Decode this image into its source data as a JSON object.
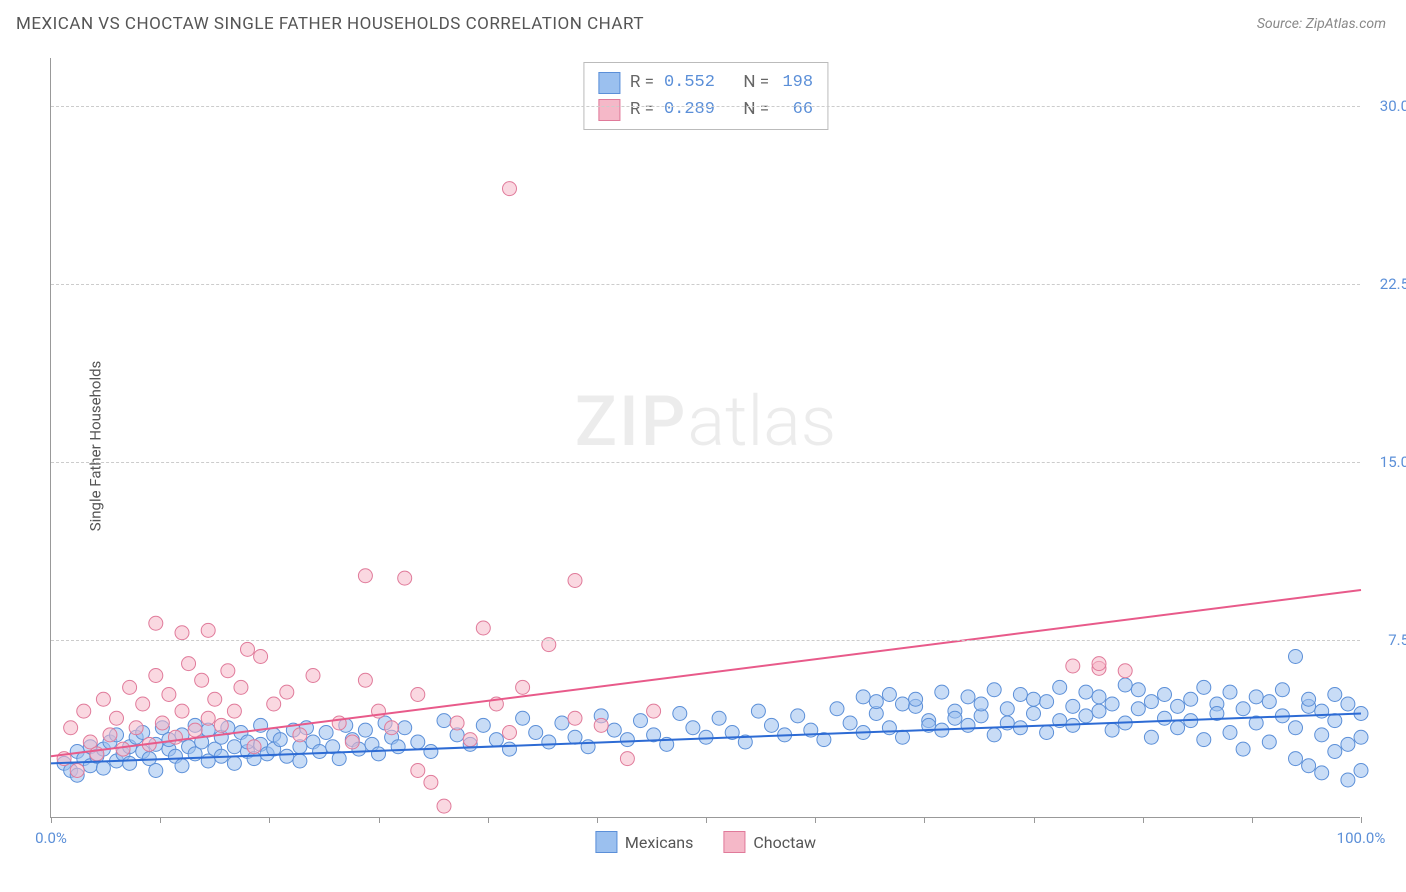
{
  "title": "MEXICAN VS CHOCTAW SINGLE FATHER HOUSEHOLDS CORRELATION CHART",
  "source": "Source: ZipAtlas.com",
  "ylabel": "Single Father Households",
  "watermark_zip": "ZIP",
  "watermark_atlas": "atlas",
  "chart": {
    "type": "scatter",
    "background_color": "#ffffff",
    "grid_color": "#cccccc",
    "axis_color": "#999999",
    "xlim": [
      0,
      100
    ],
    "ylim": [
      0,
      32
    ],
    "xtick_label_left": "0.0%",
    "xtick_label_right": "100.0%",
    "xtick_positions": [
      0,
      8.33,
      16.67,
      25,
      33.33,
      41.67,
      50,
      58.33,
      66.67,
      75,
      83.33,
      91.67,
      100
    ],
    "ytick_labels": [
      {
        "v": 7.5,
        "label": "7.5%"
      },
      {
        "v": 15.0,
        "label": "15.0%"
      },
      {
        "v": 22.5,
        "label": "22.5%"
      },
      {
        "v": 30.0,
        "label": "30.0%"
      }
    ],
    "marker_radius": 7,
    "marker_opacity": 0.55,
    "line_width": 2,
    "series": [
      {
        "name": "Mexicans",
        "fill_color": "#9bc0ef",
        "stroke_color": "#5b8fd8",
        "line_color": "#2d6bd4",
        "R": "0.552",
        "N": "198",
        "trend": {
          "x1": 0,
          "y1": 2.3,
          "x2": 100,
          "y2": 4.4
        },
        "points": [
          [
            1,
            2.3
          ],
          [
            1.5,
            2.0
          ],
          [
            2,
            2.8
          ],
          [
            2,
            1.8
          ],
          [
            2.5,
            2.5
          ],
          [
            3,
            2.2
          ],
          [
            3,
            3.0
          ],
          [
            3.5,
            2.6
          ],
          [
            4,
            2.9
          ],
          [
            4,
            2.1
          ],
          [
            4.5,
            3.2
          ],
          [
            5,
            2.4
          ],
          [
            5,
            3.5
          ],
          [
            5.5,
            2.7
          ],
          [
            6,
            3.0
          ],
          [
            6,
            2.3
          ],
          [
            6.5,
            3.4
          ],
          [
            7,
            2.8
          ],
          [
            7,
            3.6
          ],
          [
            7.5,
            2.5
          ],
          [
            8,
            3.1
          ],
          [
            8,
            2.0
          ],
          [
            8.5,
            3.8
          ],
          [
            9,
            2.9
          ],
          [
            9,
            3.3
          ],
          [
            9.5,
            2.6
          ],
          [
            10,
            3.5
          ],
          [
            10,
            2.2
          ],
          [
            10.5,
            3.0
          ],
          [
            11,
            2.7
          ],
          [
            11,
            3.9
          ],
          [
            11.5,
            3.2
          ],
          [
            12,
            2.4
          ],
          [
            12,
            3.7
          ],
          [
            12.5,
            2.9
          ],
          [
            13,
            3.4
          ],
          [
            13,
            2.6
          ],
          [
            13.5,
            3.8
          ],
          [
            14,
            3.0
          ],
          [
            14,
            2.3
          ],
          [
            14.5,
            3.6
          ],
          [
            15,
            2.8
          ],
          [
            15,
            3.2
          ],
          [
            15.5,
            2.5
          ],
          [
            16,
            3.9
          ],
          [
            16,
            3.1
          ],
          [
            16.5,
            2.7
          ],
          [
            17,
            3.5
          ],
          [
            17,
            2.9
          ],
          [
            17.5,
            3.3
          ],
          [
            18,
            2.6
          ],
          [
            18.5,
            3.7
          ],
          [
            19,
            3.0
          ],
          [
            19,
            2.4
          ],
          [
            19.5,
            3.8
          ],
          [
            20,
            3.2
          ],
          [
            20.5,
            2.8
          ],
          [
            21,
            3.6
          ],
          [
            21.5,
            3.0
          ],
          [
            22,
            2.5
          ],
          [
            22.5,
            3.9
          ],
          [
            23,
            3.3
          ],
          [
            23.5,
            2.9
          ],
          [
            24,
            3.7
          ],
          [
            24.5,
            3.1
          ],
          [
            25,
            2.7
          ],
          [
            25.5,
            4.0
          ],
          [
            26,
            3.4
          ],
          [
            26.5,
            3.0
          ],
          [
            27,
            3.8
          ],
          [
            28,
            3.2
          ],
          [
            29,
            2.8
          ],
          [
            30,
            4.1
          ],
          [
            31,
            3.5
          ],
          [
            32,
            3.1
          ],
          [
            33,
            3.9
          ],
          [
            34,
            3.3
          ],
          [
            35,
            2.9
          ],
          [
            36,
            4.2
          ],
          [
            37,
            3.6
          ],
          [
            38,
            3.2
          ],
          [
            39,
            4.0
          ],
          [
            40,
            3.4
          ],
          [
            41,
            3.0
          ],
          [
            42,
            4.3
          ],
          [
            43,
            3.7
          ],
          [
            44,
            3.3
          ],
          [
            45,
            4.1
          ],
          [
            46,
            3.5
          ],
          [
            47,
            3.1
          ],
          [
            48,
            4.4
          ],
          [
            49,
            3.8
          ],
          [
            50,
            3.4
          ],
          [
            51,
            4.2
          ],
          [
            52,
            3.6
          ],
          [
            53,
            3.2
          ],
          [
            54,
            4.5
          ],
          [
            55,
            3.9
          ],
          [
            56,
            3.5
          ],
          [
            57,
            4.3
          ],
          [
            58,
            3.7
          ],
          [
            59,
            3.3
          ],
          [
            60,
            4.6
          ],
          [
            61,
            4.0
          ],
          [
            62,
            3.6
          ],
          [
            62,
            5.1
          ],
          [
            63,
            4.4
          ],
          [
            63,
            4.9
          ],
          [
            64,
            3.8
          ],
          [
            64,
            5.2
          ],
          [
            65,
            4.8
          ],
          [
            65,
            3.4
          ],
          [
            66,
            4.7
          ],
          [
            66,
            5.0
          ],
          [
            67,
            4.1
          ],
          [
            67,
            3.9
          ],
          [
            68,
            5.3
          ],
          [
            68,
            3.7
          ],
          [
            69,
            4.5
          ],
          [
            69,
            4.2
          ],
          [
            70,
            5.1
          ],
          [
            70,
            3.9
          ],
          [
            71,
            4.3
          ],
          [
            71,
            4.8
          ],
          [
            72,
            5.4
          ],
          [
            72,
            3.5
          ],
          [
            73,
            4.6
          ],
          [
            73,
            4.0
          ],
          [
            74,
            5.2
          ],
          [
            74,
            3.8
          ],
          [
            75,
            4.4
          ],
          [
            75,
            5.0
          ],
          [
            76,
            3.6
          ],
          [
            76,
            4.9
          ],
          [
            77,
            5.5
          ],
          [
            77,
            4.1
          ],
          [
            78,
            4.7
          ],
          [
            78,
            3.9
          ],
          [
            79,
            5.3
          ],
          [
            79,
            4.3
          ],
          [
            80,
            4.5
          ],
          [
            80,
            5.1
          ],
          [
            81,
            3.7
          ],
          [
            81,
            4.8
          ],
          [
            82,
            5.6
          ],
          [
            82,
            4.0
          ],
          [
            83,
            4.6
          ],
          [
            83,
            5.4
          ],
          [
            84,
            3.4
          ],
          [
            84,
            4.9
          ],
          [
            85,
            4.2
          ],
          [
            85,
            5.2
          ],
          [
            86,
            3.8
          ],
          [
            86,
            4.7
          ],
          [
            87,
            5.0
          ],
          [
            87,
            4.1
          ],
          [
            88,
            5.5
          ],
          [
            88,
            3.3
          ],
          [
            89,
            4.8
          ],
          [
            89,
            4.4
          ],
          [
            90,
            5.3
          ],
          [
            90,
            3.6
          ],
          [
            91,
            4.6
          ],
          [
            91,
            2.9
          ],
          [
            92,
            5.1
          ],
          [
            92,
            4.0
          ],
          [
            93,
            4.9
          ],
          [
            93,
            3.2
          ],
          [
            94,
            5.4
          ],
          [
            94,
            4.3
          ],
          [
            95,
            6.8
          ],
          [
            95,
            3.8
          ],
          [
            95,
            2.5
          ],
          [
            96,
            4.7
          ],
          [
            96,
            5.0
          ],
          [
            96,
            2.2
          ],
          [
            97,
            3.5
          ],
          [
            97,
            4.5
          ],
          [
            97,
            1.9
          ],
          [
            98,
            5.2
          ],
          [
            98,
            2.8
          ],
          [
            98,
            4.1
          ],
          [
            99,
            3.1
          ],
          [
            99,
            4.8
          ],
          [
            99,
            1.6
          ],
          [
            100,
            4.4
          ],
          [
            100,
            3.4
          ],
          [
            100,
            2.0
          ]
        ]
      },
      {
        "name": "Choctaw",
        "fill_color": "#f5b8c8",
        "stroke_color": "#e07a9a",
        "line_color": "#e85a8a",
        "R": "0.289",
        "N": "66",
        "trend": {
          "x1": 0,
          "y1": 2.6,
          "x2": 100,
          "y2": 9.6
        },
        "points": [
          [
            1,
            2.5
          ],
          [
            1.5,
            3.8
          ],
          [
            2,
            2.0
          ],
          [
            2.5,
            4.5
          ],
          [
            3,
            3.2
          ],
          [
            3.5,
            2.7
          ],
          [
            4,
            5.0
          ],
          [
            4.5,
            3.5
          ],
          [
            5,
            4.2
          ],
          [
            5.5,
            2.9
          ],
          [
            6,
            5.5
          ],
          [
            6.5,
            3.8
          ],
          [
            7,
            4.8
          ],
          [
            7.5,
            3.1
          ],
          [
            8,
            6.0
          ],
          [
            8,
            8.2
          ],
          [
            8.5,
            4.0
          ],
          [
            9,
            5.2
          ],
          [
            9.5,
            3.4
          ],
          [
            10,
            4.5
          ],
          [
            10,
            7.8
          ],
          [
            10.5,
            6.5
          ],
          [
            11,
            3.7
          ],
          [
            11.5,
            5.8
          ],
          [
            12,
            4.2
          ],
          [
            12,
            7.9
          ],
          [
            12.5,
            5.0
          ],
          [
            13,
            3.9
          ],
          [
            13.5,
            6.2
          ],
          [
            14,
            4.5
          ],
          [
            14.5,
            5.5
          ],
          [
            15,
            7.1
          ],
          [
            15.5,
            3.0
          ],
          [
            16,
            6.8
          ],
          [
            17,
            4.8
          ],
          [
            18,
            5.3
          ],
          [
            19,
            3.5
          ],
          [
            20,
            6.0
          ],
          [
            22,
            4.0
          ],
          [
            23,
            3.2
          ],
          [
            24,
            5.8
          ],
          [
            24,
            10.2
          ],
          [
            25,
            4.5
          ],
          [
            26,
            3.8
          ],
          [
            27,
            10.1
          ],
          [
            28,
            5.2
          ],
          [
            28,
            2.0
          ],
          [
            29,
            1.5
          ],
          [
            30,
            0.5
          ],
          [
            31,
            4.0
          ],
          [
            32,
            3.3
          ],
          [
            33,
            8.0
          ],
          [
            34,
            4.8
          ],
          [
            35,
            3.6
          ],
          [
            35,
            26.5
          ],
          [
            36,
            5.5
          ],
          [
            38,
            7.3
          ],
          [
            40,
            10.0
          ],
          [
            40,
            4.2
          ],
          [
            42,
            3.9
          ],
          [
            44,
            2.5
          ],
          [
            46,
            4.5
          ],
          [
            78,
            6.4
          ],
          [
            80,
            6.3
          ],
          [
            80,
            6.5
          ],
          [
            82,
            6.2
          ]
        ]
      }
    ]
  },
  "legend": {
    "bottom": [
      {
        "label": "Mexicans",
        "fill": "#9bc0ef",
        "stroke": "#5b8fd8"
      },
      {
        "label": "Choctaw",
        "fill": "#f5b8c8",
        "stroke": "#e07a9a"
      }
    ]
  }
}
